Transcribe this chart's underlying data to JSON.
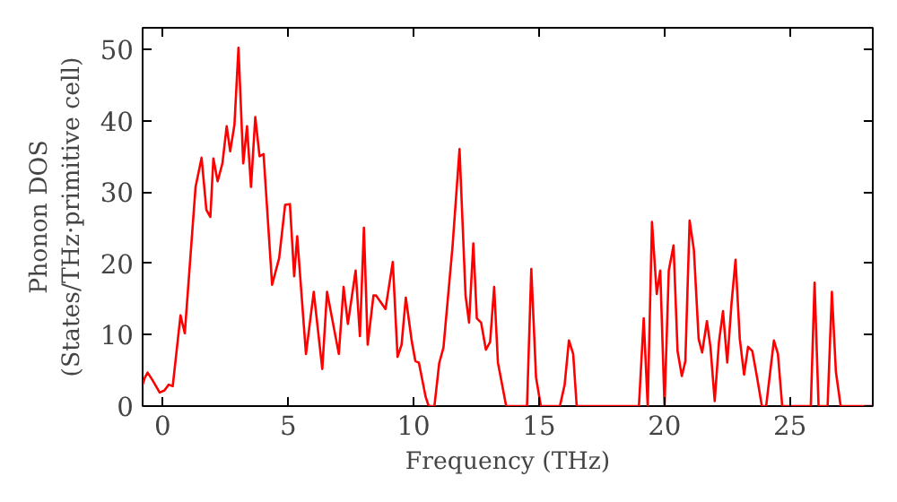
{
  "chart_data": {
    "type": "line",
    "xlabel": "Frequency (THz)",
    "ylabel": "Phonon DOS\n(States/THz·primitive cell)",
    "xlim": [
      -0.8,
      28.3
    ],
    "ylim": [
      0,
      53
    ],
    "xticks": [
      0,
      5,
      10,
      15,
      20,
      25
    ],
    "yticks": [
      0,
      10,
      20,
      30,
      40,
      50
    ],
    "grid": false,
    "series": [
      {
        "color": "#ff0000",
        "x": [
          -0.8,
          -0.71,
          -0.6,
          -0.4,
          -0.12,
          0.07,
          0.24,
          0.4,
          0.71,
          0.88,
          1.31,
          1.55,
          1.74,
          1.9,
          2.02,
          2.19,
          2.38,
          2.55,
          2.69,
          2.86,
          3.02,
          3.21,
          3.36,
          3.52,
          3.69,
          3.86,
          4.02,
          4.36,
          4.64,
          4.88,
          5.07,
          5.24,
          5.36,
          5.71,
          6.02,
          6.36,
          6.55,
          7.02,
          7.21,
          7.38,
          7.69,
          7.86,
          8.02,
          8.17,
          8.4,
          8.5,
          8.88,
          9.17,
          9.36,
          9.52,
          9.69,
          9.93,
          10.07,
          10.21,
          10.48,
          10.6,
          10.83,
          11.02,
          11.19,
          11.55,
          11.83,
          12.07,
          12.21,
          12.38,
          12.52,
          12.69,
          12.88,
          13.05,
          13.21,
          13.36,
          13.69,
          14.52,
          14.69,
          14.88,
          15.07,
          15.83,
          16.02,
          16.19,
          16.36,
          16.5,
          18.98,
          19.17,
          19.33,
          19.5,
          19.69,
          19.83,
          20.0,
          20.17,
          20.36,
          20.52,
          20.69,
          20.83,
          21.0,
          21.17,
          21.36,
          21.5,
          21.69,
          21.83,
          22.0,
          22.17,
          22.33,
          22.5,
          22.67,
          22.83,
          23.0,
          23.17,
          23.33,
          23.5,
          23.69,
          23.88,
          24.05,
          24.36,
          24.52,
          24.69,
          25.83,
          25.98,
          26.14,
          26.5,
          26.67,
          26.83,
          27.02,
          28.3
        ],
        "values": [
          3,
          4,
          4.7,
          3.6,
          1.9,
          2.2,
          3,
          2.8,
          12.7,
          10.2,
          30.7,
          34.8,
          27.5,
          26.5,
          34.7,
          31.5,
          34,
          39.2,
          35.7,
          39.4,
          50.2,
          34,
          39.2,
          30.7,
          40.5,
          35,
          35.3,
          17,
          20.7,
          28.2,
          28.3,
          18.2,
          23.8,
          7.3,
          16,
          5.2,
          16,
          7.3,
          16.7,
          11.5,
          19,
          9.8,
          25,
          8.6,
          15.5,
          15.5,
          13.6,
          20.2,
          6.9,
          8.6,
          15.2,
          9,
          6.3,
          6.1,
          1.3,
          0,
          0,
          6,
          8.2,
          22.3,
          36,
          15.5,
          11.7,
          22.8,
          12.3,
          11.7,
          7.9,
          9,
          16.7,
          6.1,
          0,
          0,
          19.2,
          4,
          0,
          0,
          3,
          9.2,
          7.3,
          0,
          0,
          12.3,
          0,
          25.8,
          15.7,
          19,
          0,
          19,
          22.5,
          7.7,
          4.2,
          6.3,
          26,
          21.9,
          9.4,
          7.5,
          11.9,
          8.3,
          0.7,
          9,
          13.3,
          6.1,
          14.4,
          20.5,
          9.4,
          4.4,
          8.3,
          7.7,
          4,
          0,
          0,
          9.2,
          7.3,
          0,
          0,
          17.3,
          0,
          0,
          16,
          4.8,
          0,
          0
        ]
      }
    ]
  }
}
